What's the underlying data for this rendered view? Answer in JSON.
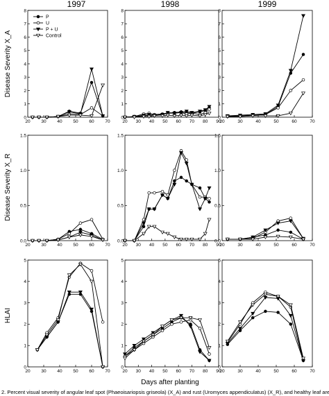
{
  "figure": {
    "year_labels": [
      "1997",
      "1998",
      "1999"
    ],
    "row_ylabels": [
      "Disease Severity X_A",
      "Disease Severity X_R",
      "HLAI"
    ],
    "xlabel": "Days after planting",
    "caption": "2. Percent visual severity of angular leaf spot (Phaeoisariopsis griseola) (X_A) and rust (Uromyces appendiculatus) (X_R), and healthy leaf area index (H"
  },
  "legend": {
    "position": "top-left of first panel",
    "entries": [
      {
        "name": "P",
        "marker": "filled-circle"
      },
      {
        "name": "U",
        "marker": "open-circle"
      },
      {
        "name": "P + U",
        "marker": "filled-triangle-down"
      },
      {
        "name": "Control",
        "marker": "open-triangle-down"
      }
    ]
  },
  "chart_data": [
    {
      "type": "line",
      "panel": "angular-1997",
      "title": "1997",
      "ylabel": "Disease Severity X_A",
      "xlabel": "",
      "xlim": [
        20,
        70
      ],
      "ylim": [
        0,
        8
      ],
      "xticks": [
        20,
        30,
        40,
        50,
        60,
        70
      ],
      "yticks": [
        0,
        1,
        2,
        3,
        4,
        5,
        6,
        7,
        8
      ],
      "series": [
        {
          "name": "P",
          "x": [
            23,
            27,
            32,
            39,
            46,
            53,
            60,
            67
          ],
          "y": [
            0,
            0,
            0,
            0.05,
            0.45,
            0.3,
            2.6,
            0.1
          ]
        },
        {
          "name": "U",
          "x": [
            23,
            27,
            32,
            39,
            46,
            53,
            60,
            67
          ],
          "y": [
            0,
            0,
            0,
            0.05,
            0.25,
            0.2,
            0.7,
            0.1
          ]
        },
        {
          "name": "P + U",
          "x": [
            23,
            27,
            32,
            39,
            46,
            53,
            60,
            67
          ],
          "y": [
            0,
            0,
            0,
            0.05,
            0.4,
            0.25,
            3.6,
            0.1
          ]
        },
        {
          "name": "Control",
          "x": [
            23,
            27,
            32,
            39,
            46,
            53,
            60,
            67
          ],
          "y": [
            0,
            0,
            0,
            0.05,
            0.15,
            0.15,
            0.1,
            2.4
          ]
        }
      ]
    },
    {
      "type": "line",
      "panel": "angular-1998",
      "title": "1998",
      "ylabel": "",
      "xlabel": "",
      "xlim": [
        20,
        90
      ],
      "ylim": [
        0,
        8
      ],
      "xticks": [
        20,
        30,
        40,
        50,
        60,
        70,
        80,
        90
      ],
      "yticks": [
        0,
        1,
        2,
        3,
        4,
        5,
        6,
        7,
        8
      ],
      "series": [
        {
          "name": "P",
          "x": [
            20,
            27,
            34,
            38,
            42,
            48,
            52,
            57,
            62,
            66,
            70,
            76,
            80,
            83
          ],
          "y": [
            0,
            0.05,
            0.1,
            0.15,
            0.15,
            0.2,
            0.3,
            0.35,
            0.4,
            0.35,
            0.3,
            0.4,
            0.5,
            0.7
          ]
        },
        {
          "name": "U",
          "x": [
            20,
            27,
            34,
            38,
            42,
            48,
            52,
            57,
            62,
            66,
            70,
            76,
            80,
            83
          ],
          "y": [
            0,
            0.05,
            0.25,
            0.3,
            0.2,
            0.25,
            0.3,
            0.3,
            0.35,
            0.25,
            0.3,
            0.2,
            0.35,
            0.6
          ]
        },
        {
          "name": "P + U",
          "x": [
            20,
            27,
            34,
            38,
            42,
            48,
            52,
            57,
            62,
            66,
            70,
            76,
            80,
            83
          ],
          "y": [
            0,
            0.05,
            0.15,
            0.2,
            0.15,
            0.2,
            0.35,
            0.3,
            0.35,
            0.45,
            0.35,
            0.45,
            0.55,
            0.8
          ]
        },
        {
          "name": "Control",
          "x": [
            20,
            27,
            34,
            38,
            42,
            48,
            52,
            57,
            62,
            66,
            70,
            76,
            80,
            83
          ],
          "y": [
            0,
            0,
            0.05,
            0.05,
            0.1,
            0.1,
            0.15,
            0.1,
            0.15,
            0.1,
            0.15,
            0.1,
            0.2,
            0.3
          ]
        }
      ]
    },
    {
      "type": "line",
      "panel": "angular-1999",
      "title": "1999",
      "ylabel": "",
      "xlabel": "",
      "xlim": [
        20,
        70
      ],
      "ylim": [
        0,
        8
      ],
      "xticks": [
        20,
        30,
        40,
        50,
        60,
        70
      ],
      "yticks": [
        0,
        1,
        2,
        3,
        4,
        5,
        6,
        7,
        8
      ],
      "series": [
        {
          "name": "P",
          "x": [
            23,
            30,
            37,
            44,
            51,
            58,
            65
          ],
          "y": [
            0.1,
            0.1,
            0.15,
            0.2,
            0.8,
            3.3,
            4.7
          ]
        },
        {
          "name": "U",
          "x": [
            23,
            30,
            37,
            44,
            51,
            58,
            65
          ],
          "y": [
            0.05,
            0.1,
            0.15,
            0.2,
            0.7,
            2.0,
            2.8
          ]
        },
        {
          "name": "P + U",
          "x": [
            23,
            30,
            37,
            44,
            51,
            58,
            65
          ],
          "y": [
            0.1,
            0.15,
            0.2,
            0.25,
            0.9,
            3.5,
            7.6
          ]
        },
        {
          "name": "Control",
          "x": [
            23,
            30,
            37,
            44,
            51,
            58,
            65
          ],
          "y": [
            0.05,
            0.05,
            0.1,
            0.1,
            0.1,
            0.3,
            1.8
          ]
        }
      ]
    },
    {
      "type": "line",
      "panel": "rust-1997",
      "title": "",
      "ylabel": "Disease Severity X_R",
      "xlabel": "",
      "xlim": [
        20,
        70
      ],
      "ylim": [
        0,
        1.5
      ],
      "xticks": [
        20,
        30,
        40,
        50,
        60,
        70
      ],
      "yticks": [
        0.0,
        0.5,
        1.0,
        1.5
      ],
      "series": [
        {
          "name": "P",
          "x": [
            23,
            27,
            32,
            39,
            46,
            53,
            60,
            67
          ],
          "y": [
            0,
            0,
            0,
            0.02,
            0.13,
            0.16,
            0.1,
            0.02
          ]
        },
        {
          "name": "U",
          "x": [
            23,
            27,
            32,
            39,
            46,
            53,
            60,
            67
          ],
          "y": [
            0,
            0,
            0,
            0.02,
            0.1,
            0.25,
            0.3,
            0.02
          ]
        },
        {
          "name": "P + U",
          "x": [
            23,
            27,
            32,
            39,
            46,
            53,
            60,
            67
          ],
          "y": [
            0,
            0,
            0,
            0.01,
            0.05,
            0.12,
            0.08,
            0.01
          ]
        },
        {
          "name": "Control",
          "x": [
            23,
            27,
            32,
            39,
            46,
            53,
            60,
            67
          ],
          "y": [
            0,
            0,
            0,
            0.01,
            0.05,
            0.08,
            0.06,
            0.01
          ]
        }
      ]
    },
    {
      "type": "line",
      "panel": "rust-1998",
      "title": "",
      "ylabel": "",
      "xlabel": "",
      "xlim": [
        20,
        90
      ],
      "ylim": [
        0,
        1.5
      ],
      "xticks": [
        20,
        30,
        40,
        50,
        60,
        70,
        80,
        90
      ],
      "yticks": [
        0.0,
        0.5,
        1.0,
        1.5
      ],
      "series": [
        {
          "name": "P",
          "x": [
            20,
            27,
            34,
            38,
            42,
            48,
            52,
            57,
            62,
            66,
            70,
            76,
            80,
            83
          ],
          "y": [
            0,
            0,
            0.2,
            0.45,
            0.45,
            0.65,
            0.6,
            0.85,
            0.9,
            0.85,
            0.8,
            0.75,
            0.6,
            0.55
          ]
        },
        {
          "name": "U",
          "x": [
            20,
            27,
            34,
            38,
            42,
            48,
            52,
            57,
            62,
            66,
            70,
            76,
            80,
            83
          ],
          "y": [
            0,
            0,
            0.3,
            0.68,
            0.68,
            0.7,
            0.65,
            1.0,
            1.28,
            1.15,
            0.8,
            0.62,
            0.62,
            0.6
          ]
        },
        {
          "name": "P + U",
          "x": [
            20,
            27,
            34,
            38,
            42,
            48,
            52,
            57,
            62,
            66,
            70,
            76,
            80,
            83
          ],
          "y": [
            0,
            0,
            0.25,
            0.45,
            0.45,
            0.65,
            0.6,
            0.8,
            1.25,
            1.1,
            0.8,
            0.45,
            0.6,
            0.75
          ]
        },
        {
          "name": "Control",
          "x": [
            20,
            27,
            34,
            38,
            42,
            48,
            52,
            57,
            62,
            66,
            70,
            76,
            80,
            83
          ],
          "y": [
            0,
            0,
            0.1,
            0.2,
            0.2,
            0.12,
            0.1,
            0.05,
            0.02,
            0.02,
            0.02,
            0.02,
            0.1,
            0.3
          ]
        }
      ]
    },
    {
      "type": "line",
      "panel": "rust-1999",
      "title": "",
      "ylabel": "",
      "xlabel": "",
      "xlim": [
        20,
        70
      ],
      "ylim": [
        0,
        1.5
      ],
      "xticks": [
        20,
        30,
        40,
        50,
        60,
        70
      ],
      "yticks": [
        0.0,
        0.5,
        1.0,
        1.5
      ],
      "series": [
        {
          "name": "P",
          "x": [
            23,
            30,
            37,
            44,
            51,
            58,
            65
          ],
          "y": [
            0.02,
            0.02,
            0.05,
            0.08,
            0.15,
            0.12,
            0.02
          ]
        },
        {
          "name": "U",
          "x": [
            23,
            30,
            37,
            44,
            51,
            58,
            65
          ],
          "y": [
            0.02,
            0.02,
            0.03,
            0.12,
            0.28,
            0.32,
            0.03
          ]
        },
        {
          "name": "P + U",
          "x": [
            23,
            30,
            37,
            44,
            51,
            58,
            65
          ],
          "y": [
            0.02,
            0.02,
            0.05,
            0.15,
            0.25,
            0.28,
            0.03
          ]
        },
        {
          "name": "Control",
          "x": [
            23,
            30,
            37,
            44,
            51,
            58,
            65
          ],
          "y": [
            0.02,
            0.02,
            0.02,
            0.05,
            0.06,
            0.05,
            0.02
          ]
        }
      ]
    },
    {
      "type": "line",
      "panel": "hlai-1997",
      "title": "",
      "ylabel": "HLAI",
      "xlabel": "",
      "xlim": [
        20,
        70
      ],
      "ylim": [
        0,
        5
      ],
      "xticks": [
        20,
        30,
        40,
        50,
        60,
        70
      ],
      "yticks": [
        0,
        1,
        2,
        3,
        4,
        5
      ],
      "series": [
        {
          "name": "P",
          "x": [
            26,
            32,
            39,
            46,
            53,
            60,
            67
          ],
          "y": [
            0.8,
            1.4,
            2.1,
            3.4,
            3.4,
            2.6,
            0.0
          ]
        },
        {
          "name": "U",
          "x": [
            26,
            32,
            39,
            46,
            53,
            60,
            67
          ],
          "y": [
            0.8,
            1.6,
            2.3,
            4.2,
            4.85,
            4.5,
            2.1
          ]
        },
        {
          "name": "P + U",
          "x": [
            26,
            32,
            39,
            46,
            53,
            60,
            67
          ],
          "y": [
            0.8,
            1.4,
            2.1,
            3.5,
            3.5,
            2.7,
            0.0
          ]
        },
        {
          "name": "Control",
          "x": [
            26,
            32,
            39,
            46,
            53,
            60,
            67
          ],
          "y": [
            0.8,
            1.5,
            2.2,
            4.3,
            4.8,
            4.0,
            0.0
          ]
        }
      ]
    },
    {
      "type": "line",
      "panel": "hlai-1998",
      "title": "",
      "ylabel": "",
      "xlabel": "Days after planting",
      "xlim": [
        20,
        90
      ],
      "ylim": [
        0,
        5
      ],
      "xticks": [
        20,
        30,
        40,
        50,
        60,
        70,
        80,
        90
      ],
      "yticks": [
        0,
        1,
        2,
        3,
        4,
        5
      ],
      "series": [
        {
          "name": "P",
          "x": [
            20,
            27,
            34,
            41,
            48,
            55,
            62,
            69,
            76,
            83
          ],
          "y": [
            0.5,
            0.9,
            1.2,
            1.5,
            1.8,
            2.1,
            2.3,
            2.0,
            0.8,
            0.3
          ]
        },
        {
          "name": "U",
          "x": [
            20,
            27,
            34,
            41,
            48,
            55,
            62,
            69,
            76,
            83
          ],
          "y": [
            0.5,
            0.8,
            1.1,
            1.4,
            1.7,
            2.0,
            2.1,
            2.2,
            1.8,
            0.6
          ]
        },
        {
          "name": "P + U",
          "x": [
            20,
            27,
            34,
            41,
            48,
            55,
            62,
            69,
            76,
            83
          ],
          "y": [
            0.6,
            1.0,
            1.3,
            1.6,
            1.9,
            2.2,
            2.4,
            1.9,
            0.7,
            0.3
          ]
        },
        {
          "name": "Control",
          "x": [
            20,
            27,
            34,
            41,
            48,
            55,
            62,
            69,
            76,
            83
          ],
          "y": [
            0.4,
            0.8,
            1.2,
            1.5,
            1.9,
            2.2,
            2.3,
            2.3,
            2.2,
            0.9
          ]
        }
      ]
    },
    {
      "type": "line",
      "panel": "hlai-1999",
      "title": "",
      "ylabel": "",
      "xlabel": "",
      "xlim": [
        20,
        70
      ],
      "ylim": [
        0,
        5
      ],
      "xticks": [
        20,
        30,
        40,
        50,
        60,
        70
      ],
      "yticks": [
        0,
        1,
        2,
        3,
        4,
        5
      ],
      "series": [
        {
          "name": "P",
          "x": [
            23,
            30,
            37,
            44,
            51,
            58,
            65
          ],
          "y": [
            1.05,
            1.7,
            2.3,
            2.6,
            2.55,
            2.0,
            0.3
          ]
        },
        {
          "name": "U",
          "x": [
            23,
            30,
            37,
            44,
            51,
            58,
            65
          ],
          "y": [
            1.15,
            2.0,
            3.0,
            3.5,
            3.3,
            2.8,
            0.3
          ]
        },
        {
          "name": "P + U",
          "x": [
            23,
            30,
            37,
            44,
            51,
            58,
            65
          ],
          "y": [
            1.1,
            1.8,
            2.5,
            3.25,
            3.2,
            2.4,
            0.3
          ]
        },
        {
          "name": "Control",
          "x": [
            23,
            30,
            37,
            44,
            51,
            58,
            65
          ],
          "y": [
            1.2,
            2.1,
            2.9,
            3.4,
            3.3,
            2.9,
            0.4
          ]
        }
      ]
    }
  ]
}
